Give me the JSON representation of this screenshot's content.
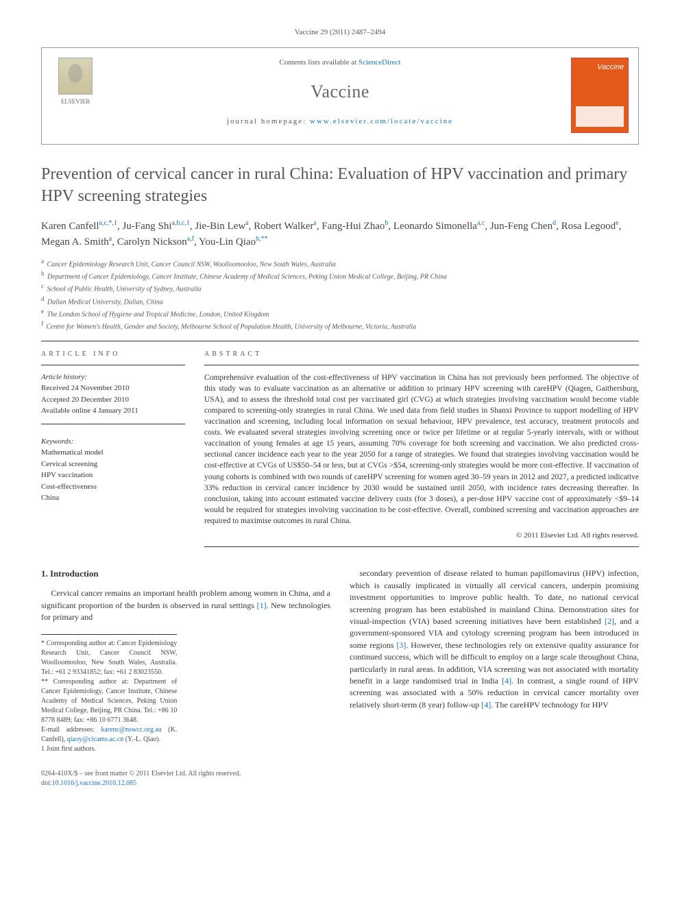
{
  "citation": "Vaccine 29 (2011) 2487–2494",
  "header": {
    "contents_prefix": "Contents lists available at ",
    "contents_link": "ScienceDirect",
    "journal": "Vaccine",
    "homepage_prefix": "journal homepage: ",
    "homepage_url": "www.elsevier.com/locate/vaccine",
    "publisher": "ELSEVIER",
    "cover_brand": "Vaccine"
  },
  "title": "Prevention of cervical cancer in rural China: Evaluation of HPV vaccination and primary HPV screening strategies",
  "authors_html": "Karen Canfell<sup>a,c,*,1</sup>, Ju-Fang Shi<sup>a,b,c,1</sup>, Jie-Bin Lew<sup>a</sup>, Robert Walker<sup>a</sup>, Fang-Hui Zhao<sup>b</sup>, Leonardo Simonella<sup>a,c</sup>, Jun-Feng Chen<sup>d</sup>, Rosa Legood<sup>e</sup>, Megan A. Smith<sup>a</sup>, Carolyn Nickson<sup>a,f</sup>, You-Lin Qiao<sup>b,**</sup>",
  "affiliations": [
    {
      "sup": "a",
      "text": "Cancer Epidemiology Research Unit, Cancer Council NSW, Woolloomooloo, New South Wales, Australia"
    },
    {
      "sup": "b",
      "text": "Department of Cancer Epidemiology, Cancer Institute, Chinese Academy of Medical Sciences, Peking Union Medical College, Beijing, PR China"
    },
    {
      "sup": "c",
      "text": "School of Public Health, University of Sydney, Australia"
    },
    {
      "sup": "d",
      "text": "Dalian Medical University, Dalian, China"
    },
    {
      "sup": "e",
      "text": "The London School of Hygiene and Tropical Medicine, London, United Kingdom"
    },
    {
      "sup": "f",
      "text": "Centre for Women's Health, Gender and Society, Melbourne School of Population Health, University of Melbourne, Victoria, Australia"
    }
  ],
  "article_info": {
    "label": "ARTICLE INFO",
    "history_h": "Article history:",
    "history": [
      "Received 24 November 2010",
      "Accepted 20 December 2010",
      "Available online 4 January 2011"
    ],
    "keywords_h": "Keywords:",
    "keywords": [
      "Mathematical model",
      "Cervical screening",
      "HPV vaccination",
      "Cost-effectiveness",
      "China"
    ]
  },
  "abstract": {
    "label": "ABSTRACT",
    "text": "Comprehensive evaluation of the cost-effectiveness of HPV vaccination in China has not previously been performed. The objective of this study was to evaluate vaccination as an alternative or addition to primary HPV screening with careHPV (Qiagen, Gaithersburg, USA), and to assess the threshold total cost per vaccinated girl (CVG) at which strategies involving vaccination would become viable compared to screening-only strategies in rural China. We used data from field studies in Shanxi Province to support modelling of HPV vaccination and screening, including local information on sexual behaviour, HPV prevalence, test accuracy, treatment protocols and costs. We evaluated several strategies involving screening once or twice per lifetime or at regular 5-yearly intervals, with or without vaccination of young females at age 15 years, assuming 70% coverage for both screening and vaccination. We also predicted cross-sectional cancer incidence each year to the year 2050 for a range of strategies. We found that strategies involving vaccination would be cost-effective at CVGs of US$50–54 or less, but at CVGs >$54, screening-only strategies would be more cost-effective. If vaccination of young cohorts is combined with two rounds of careHPV screening for women aged 30–59 years in 2012 and 2027, a predicted indicative 33% reduction in cervical cancer incidence by 2030 would be sustained until 2050, with incidence rates decreasing thereafter. In conclusion, taking into account estimated vaccine delivery costs (for 3 doses), a per-dose HPV vaccine cost of approximately <$9–14 would be required for strategies involving vaccination to be cost-effective. Overall, combined screening and vaccination approaches are required to maximise outcomes in rural China.",
    "copyright": "© 2011 Elsevier Ltd. All rights reserved."
  },
  "intro": {
    "heading": "1. Introduction",
    "p1": "Cervical cancer remains an important health problem among women in China, and a significant proportion of the burden is observed in rural settings [1]. New technologies for primary and",
    "p2": "secondary prevention of disease related to human papillomavirus (HPV) infection, which is causally implicated in virtually all cervical cancers, underpin promising investment opportunities to improve public health. To date, no national cervical screening program has been established in mainland China. Demonstration sites for visual-inspection (VIA) based screening initiatives have been established [2], and a government-sponsored VIA and cytology screening program has been introduced in some regions [3]. However, these technologies rely on extensive quality assurance for continued success, which will be difficult to employ on a large scale throughout China, particularly in rural areas. In addition, VIA screening was not associated with mortality benefit in a large randomised trial in India [4]. In contrast, a single round of HPV screening was associated with a 50% reduction in cervical cancer mortality over relatively short-term (8 year) follow-up [4]. The careHPV technology for HPV"
  },
  "footnotes": {
    "corr1": "* Corresponding author at: Cancer Epidemiology Research Unit, Cancer Council NSW, Woolloomooloo, New South Wales, Australia. Tel.: +61 2 93341852; fax: +61 2 83023550.",
    "corr2": "** Corresponding author at: Department of Cancer Epidemiology, Cancer Institute, Chinese Academy of Medical Sciences, Peking Union Medical College, Beijing, PR China. Tel.: +86 10 8778 8489; fax: +86 10 6771 3648.",
    "emails_label": "E-mail addresses: ",
    "email1": "karenc@nswcc.org.au",
    "email1_who": " (K. Canfell), ",
    "email2": "qiaoy@cicams.ac.cn",
    "email2_who": " (Y.-L. Qiao).",
    "joint": "1 Joint first authors."
  },
  "footer": {
    "left_line1": "0264-410X/$ – see front matter © 2011 Elsevier Ltd. All rights reserved.",
    "left_line2_prefix": "doi:",
    "doi": "10.1016/j.vaccine.2010.12.085"
  },
  "colors": {
    "link": "#1772c7",
    "cover": "#e55a1b",
    "text": "#333333",
    "muted": "#555555",
    "rule": "#333333"
  },
  "typography": {
    "body_pt": 12,
    "title_pt": 24,
    "authors_pt": 15,
    "small_pt": 10,
    "journal_name_pt": 26,
    "font_family": "Georgia, 'Times New Roman', serif"
  }
}
